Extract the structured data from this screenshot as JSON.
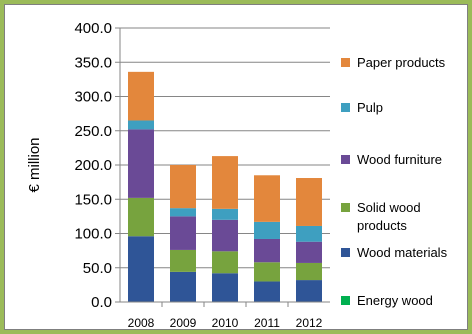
{
  "chart_data": {
    "type": "bar",
    "stacked": true,
    "ylabel": "€ million",
    "ylim": [
      0,
      400
    ],
    "yticks": [
      "0.0",
      "50.0",
      "100.0",
      "150.0",
      "200.0",
      "250.0",
      "300.0",
      "350.0",
      "400.0"
    ],
    "grid": "horizontal",
    "legend_position": "right",
    "categories": [
      "2008",
      "2009",
      "2010",
      "2011",
      "2012"
    ],
    "series": [
      {
        "name": "Energy wood",
        "color": "#00b050",
        "values": [
          0,
          0,
          0,
          0,
          0
        ]
      },
      {
        "name": "Wood materials",
        "color": "#2f5597",
        "values": [
          96,
          44,
          42,
          30,
          32
        ]
      },
      {
        "name": "Solid wood products",
        "color": "#77a33e",
        "values": [
          56,
          32,
          32,
          28,
          25
        ]
      },
      {
        "name": "Wood furniture",
        "color": "#6a4a96",
        "values": [
          100,
          49,
          46,
          34,
          31
        ]
      },
      {
        "name": "Pulp",
        "color": "#3e9fc0",
        "values": [
          13,
          12,
          16,
          25,
          23
        ]
      },
      {
        "name": "Paper products",
        "color": "#e3873c",
        "values": [
          71,
          63,
          77,
          68,
          70
        ]
      }
    ],
    "legend_order": [
      "Paper products",
      "Pulp",
      "Wood furniture",
      "Solid wood products",
      "Wood materials",
      "Energy wood"
    ]
  }
}
